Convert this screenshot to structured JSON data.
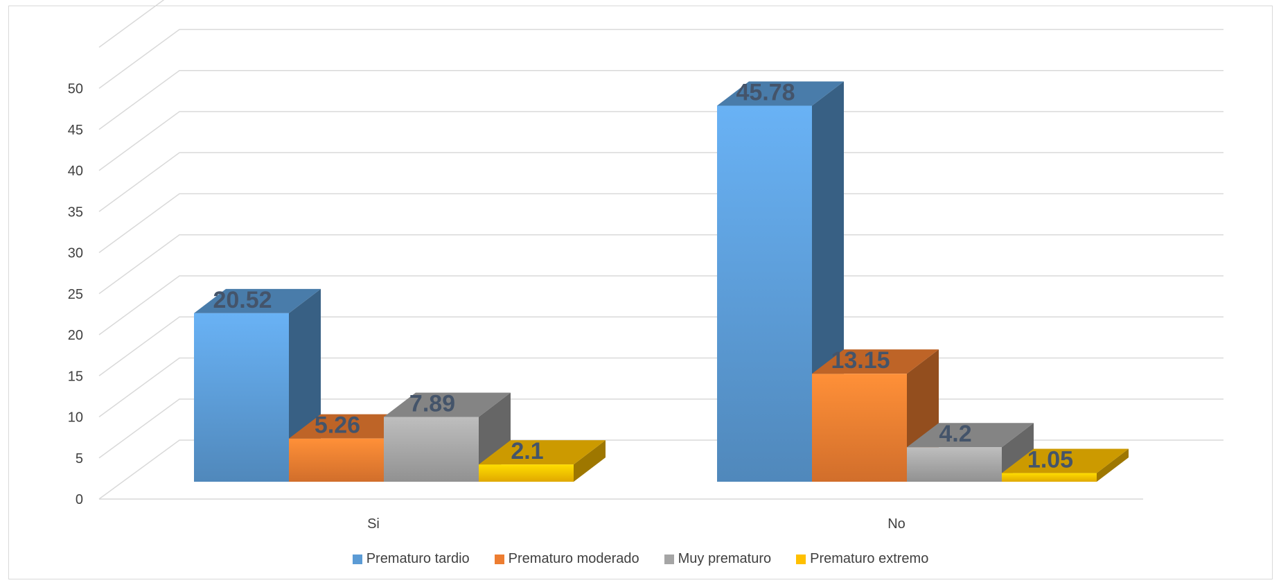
{
  "chart_data": {
    "type": "bar",
    "subtype": "3d-clustered-column",
    "title": "",
    "xlabel": "",
    "ylabel": "",
    "categories": [
      "Si",
      "No"
    ],
    "ylim": [
      0,
      50
    ],
    "yticks": [
      "0",
      "5",
      "10",
      "15",
      "20",
      "25",
      "30",
      "35",
      "40",
      "45",
      "50"
    ],
    "grid": true,
    "legend_position": "bottom",
    "series": [
      {
        "name": "Prematuro tardio",
        "values": [
          20.52,
          45.78
        ],
        "labels": [
          "20.52",
          "45.78"
        ],
        "color": "#5b9bd5"
      },
      {
        "name": "Prematuro moderado",
        "values": [
          5.26,
          13.15
        ],
        "labels": [
          "5.26",
          "13.15"
        ],
        "color": "#ed7d31"
      },
      {
        "name": "Muy prematuro",
        "values": [
          7.89,
          4.2
        ],
        "labels": [
          "7.89",
          "4.2"
        ],
        "color": "#a5a5a5"
      },
      {
        "name": "Prematuro extremo",
        "values": [
          2.1,
          1.05
        ],
        "labels": [
          "2.1",
          "1.05"
        ],
        "color": "#ffc000"
      }
    ]
  }
}
